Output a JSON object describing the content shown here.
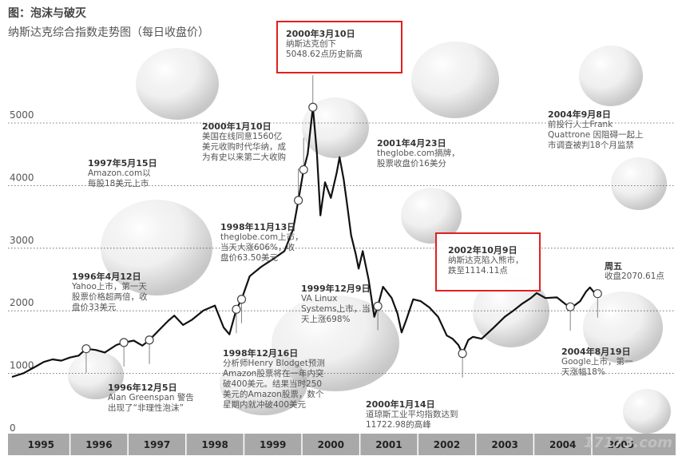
{
  "title": "图：泡沫与破灭",
  "subtitle": "纳斯达克综合指数走势图（每日收盘价）",
  "watermark": "17173.com",
  "chart_data": {
    "type": "line",
    "x_axis": {
      "categories": [
        "1995",
        "1996",
        "1997",
        "1998",
        "1999",
        "2000",
        "2001",
        "2002",
        "2003",
        "2004",
        "2005"
      ]
    },
    "y_axis": {
      "ticks": [
        0,
        1000,
        2000,
        3000,
        4000,
        5000
      ],
      "range": [
        0,
        5000
      ]
    },
    "grid": true,
    "series": [
      {
        "points": [
          [
            1995.0,
            740
          ],
          [
            1995.2,
            800
          ],
          [
            1995.4,
            900
          ],
          [
            1995.55,
            980
          ],
          [
            1995.7,
            1020
          ],
          [
            1995.85,
            1000
          ],
          [
            1996.0,
            1050
          ],
          [
            1996.15,
            1080
          ],
          [
            1996.28,
            1190
          ],
          [
            1996.45,
            1170
          ],
          [
            1996.6,
            1130
          ],
          [
            1996.8,
            1250
          ],
          [
            1996.93,
            1290
          ],
          [
            1997.1,
            1320
          ],
          [
            1997.25,
            1240
          ],
          [
            1997.37,
            1330
          ],
          [
            1997.55,
            1500
          ],
          [
            1997.7,
            1640
          ],
          [
            1997.8,
            1720
          ],
          [
            1997.95,
            1570
          ],
          [
            1998.1,
            1650
          ],
          [
            1998.3,
            1800
          ],
          [
            1998.5,
            1880
          ],
          [
            1998.65,
            1530
          ],
          [
            1998.75,
            1420
          ],
          [
            1998.87,
            1820
          ],
          [
            1998.96,
            1980
          ],
          [
            1999.1,
            2350
          ],
          [
            1999.3,
            2500
          ],
          [
            1999.5,
            2620
          ],
          [
            1999.7,
            2750
          ],
          [
            1999.85,
            3100
          ],
          [
            1999.94,
            3560
          ],
          [
            2000.03,
            4050
          ],
          [
            2000.1,
            4300
          ],
          [
            2000.19,
            5048
          ],
          [
            2000.26,
            4300
          ],
          [
            2000.32,
            3320
          ],
          [
            2000.4,
            3850
          ],
          [
            2000.5,
            3600
          ],
          [
            2000.6,
            4000
          ],
          [
            2000.65,
            4250
          ],
          [
            2000.72,
            3900
          ],
          [
            2000.78,
            3500
          ],
          [
            2000.85,
            3000
          ],
          [
            2000.93,
            2700
          ],
          [
            2000.98,
            2470
          ],
          [
            2001.05,
            2750
          ],
          [
            2001.15,
            2300
          ],
          [
            2001.25,
            1700
          ],
          [
            2001.31,
            1870
          ],
          [
            2001.4,
            2180
          ],
          [
            2001.55,
            2000
          ],
          [
            2001.65,
            1750
          ],
          [
            2001.72,
            1450
          ],
          [
            2001.8,
            1650
          ],
          [
            2001.92,
            1980
          ],
          [
            2002.05,
            1950
          ],
          [
            2002.2,
            1850
          ],
          [
            2002.35,
            1700
          ],
          [
            2002.5,
            1400
          ],
          [
            2002.6,
            1350
          ],
          [
            2002.7,
            1250
          ],
          [
            2002.77,
            1114
          ],
          [
            2002.87,
            1330
          ],
          [
            2002.95,
            1380
          ],
          [
            2003.1,
            1350
          ],
          [
            2003.3,
            1520
          ],
          [
            2003.5,
            1700
          ],
          [
            2003.65,
            1800
          ],
          [
            2003.8,
            1910
          ],
          [
            2003.95,
            2000
          ],
          [
            2004.05,
            2080
          ],
          [
            2004.2,
            2000
          ],
          [
            2004.4,
            2010
          ],
          [
            2004.55,
            1900
          ],
          [
            2004.63,
            1860
          ],
          [
            2004.7,
            1880
          ],
          [
            2004.8,
            1950
          ],
          [
            2004.9,
            2100
          ],
          [
            2004.97,
            2170
          ],
          [
            2005.05,
            2080
          ],
          [
            2005.1,
            2070
          ]
        ]
      }
    ],
    "markers": [
      {
        "x": 1996.28,
        "y": 1190
      },
      {
        "x": 1996.93,
        "y": 1290
      },
      {
        "x": 1997.37,
        "y": 1330
      },
      {
        "x": 1998.87,
        "y": 1820
      },
      {
        "x": 1998.96,
        "y": 1980
      },
      {
        "x": 1999.94,
        "y": 3560
      },
      {
        "x": 2000.03,
        "y": 4050
      },
      {
        "x": 2000.19,
        "y": 5048
      },
      {
        "x": 2001.31,
        "y": 1870
      },
      {
        "x": 2002.77,
        "y": 1114
      },
      {
        "x": 2004.63,
        "y": 1860
      },
      {
        "x": 2005.1,
        "y": 2070
      }
    ],
    "annotations": {
      "a2000_0310": {
        "date": "2000年3月10日",
        "text": [
          "纳斯达克创下",
          "5048.62点历史新高"
        ]
      },
      "a2000_0110": {
        "date": "2000年1月10日",
        "text": [
          "美国在线同意1560亿",
          "美元收购时代华纳，成",
          "为有史以来第二大收购"
        ]
      },
      "a2001_0423": {
        "date": "2001年4月23日",
        "text": [
          "theglobe.com摘牌，",
          "股票收盘价16美分"
        ]
      },
      "a2004_0908": {
        "date": "2004年9月8日",
        "text": [
          "前投行人士Frank",
          "Quattrone 因阻碍一起上",
          "市调查被判18个月监禁"
        ]
      },
      "a1997_0515": {
        "date": "1997年5月15日",
        "text": [
          "Amazon.com以",
          "每股18美元上市"
        ]
      },
      "a1998_1113": {
        "date": "1998年11月13日",
        "text": [
          "theglobe.com上市，",
          "当天大涨606%，收",
          "盘价63.50美元"
        ]
      },
      "a2002_1009": {
        "date": "2002年10月9日",
        "text": [
          "纳斯达克陷入熊市，",
          "跌至1114.11点"
        ]
      },
      "a1996_0412": {
        "date": "1996年4月12日",
        "text": [
          "Yahoo上市，第一天",
          "股票价格超两倍，收",
          "盘价33美元"
        ]
      },
      "a1999_1209": {
        "date": "1999年12月9日",
        "text": [
          "VA Linux",
          "Systems上市，当",
          "天上涨698%"
        ]
      },
      "a_friday": {
        "date": "周五",
        "text": [
          "收盘2070.61点"
        ]
      },
      "a1996_1205": {
        "date": "1996年12月5日",
        "text": [
          "Alan Greenspan 警告",
          "出现了“非理性泡沫”"
        ]
      },
      "a1998_1216": {
        "date": "1998年12月16日",
        "text": [
          "分析师Henry Blodget预测",
          "Amazon股票将在一年内突",
          "破400美元。结果当时250",
          "美元的Amazon股票，数个",
          "星期内就冲破400美元"
        ]
      },
      "a2004_0819": {
        "date": "2004年8月19日",
        "text": [
          "Google上市，第一",
          "天涨幅18%"
        ]
      },
      "a2000_0114": {
        "date": "2000年1月14日",
        "text": [
          "道琼斯工业平均指数达到",
          "11722.98的高峰"
        ]
      }
    }
  }
}
